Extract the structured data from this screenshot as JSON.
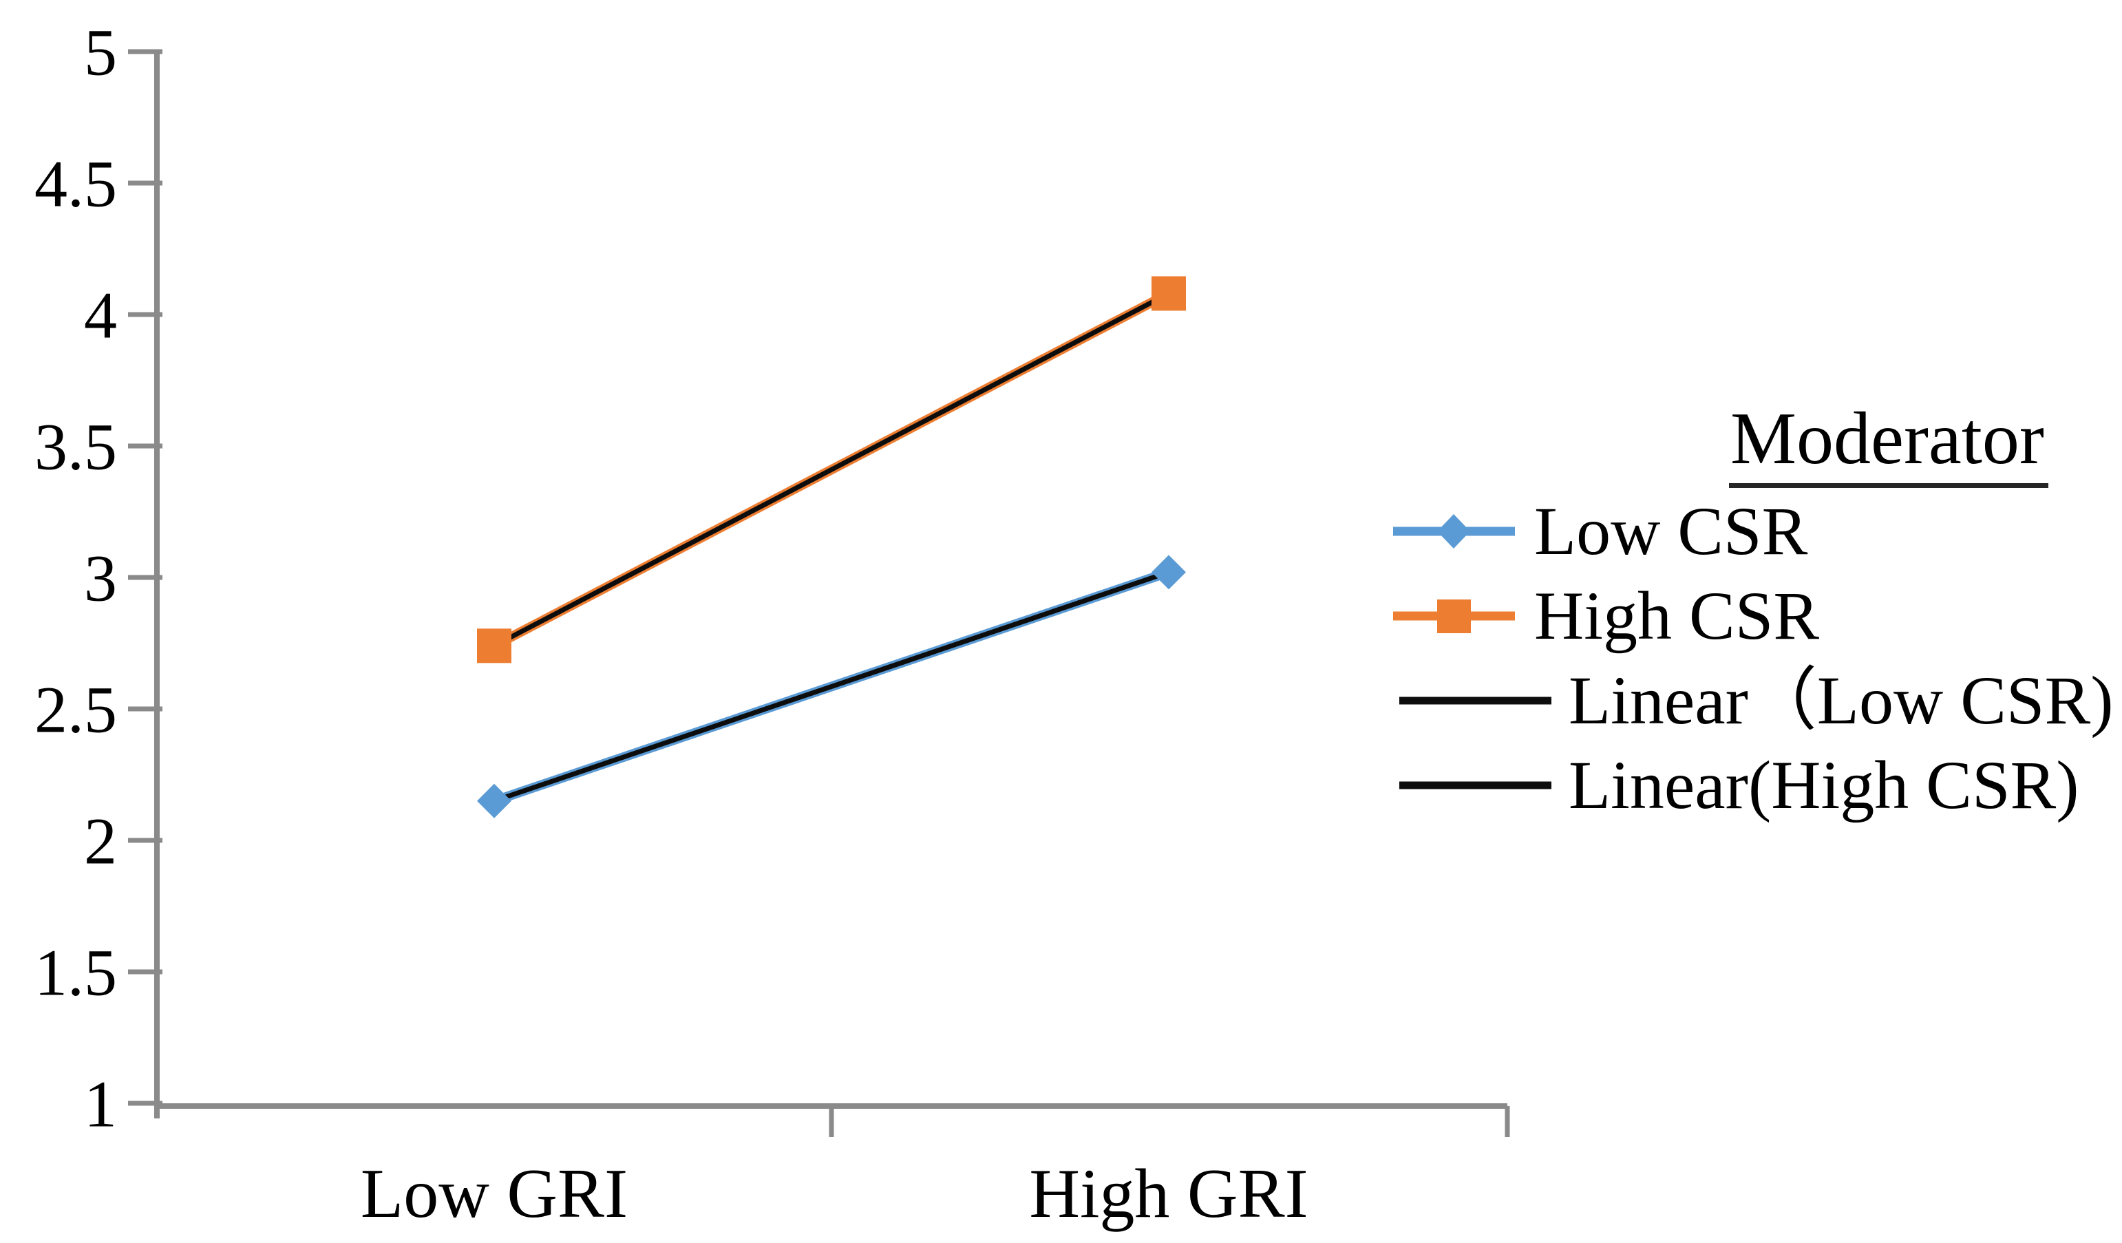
{
  "figure": {
    "background": "#ffffff"
  },
  "colors": {
    "low_csr": "#5b9bd5",
    "high_csr": "#ed7d31",
    "trendline": "#0d0d0d",
    "axis": "#8a8a8a",
    "text": "#000000"
  },
  "legend": {
    "title": "Moderator",
    "items": [
      {
        "label": "Low CSR",
        "marker": "line-diamond",
        "color": "#5b9bd5"
      },
      {
        "label": "High CSR",
        "marker": "line-square",
        "color": "#ed7d31"
      },
      {
        "label": "Linear（Low CSR)",
        "marker": "line",
        "color": "#0d0d0d"
      },
      {
        "label": "Linear(High CSR)",
        "marker": "line",
        "color": "#0d0d0d"
      }
    ]
  },
  "chart_data": {
    "type": "line",
    "title": "",
    "xlabel": "",
    "ylabel": "",
    "categories": [
      "Low GRI",
      "High GRI"
    ],
    "series": [
      {
        "name": "Low CSR",
        "values": [
          2.15,
          3.02
        ],
        "color": "#5b9bd5",
        "marker": "diamond",
        "trendline": true
      },
      {
        "name": "High CSR",
        "values": [
          2.74,
          4.08
        ],
        "color": "#ed7d31",
        "marker": "square",
        "trendline": true
      }
    ],
    "y_axis": {
      "min": 1,
      "max": 5,
      "step": 0.5,
      "ticks": [
        5,
        4.5,
        4,
        3.5,
        3,
        2.5,
        2,
        1.5,
        1
      ],
      "tick_labels": [
        "5",
        "4.5",
        "4",
        "3.5",
        "3",
        "2.5",
        "2",
        "1.5",
        "1"
      ]
    },
    "x_axis": {
      "labels": [
        "Low GRI",
        "High GRI"
      ]
    },
    "grid": false,
    "legend_position": "right"
  }
}
